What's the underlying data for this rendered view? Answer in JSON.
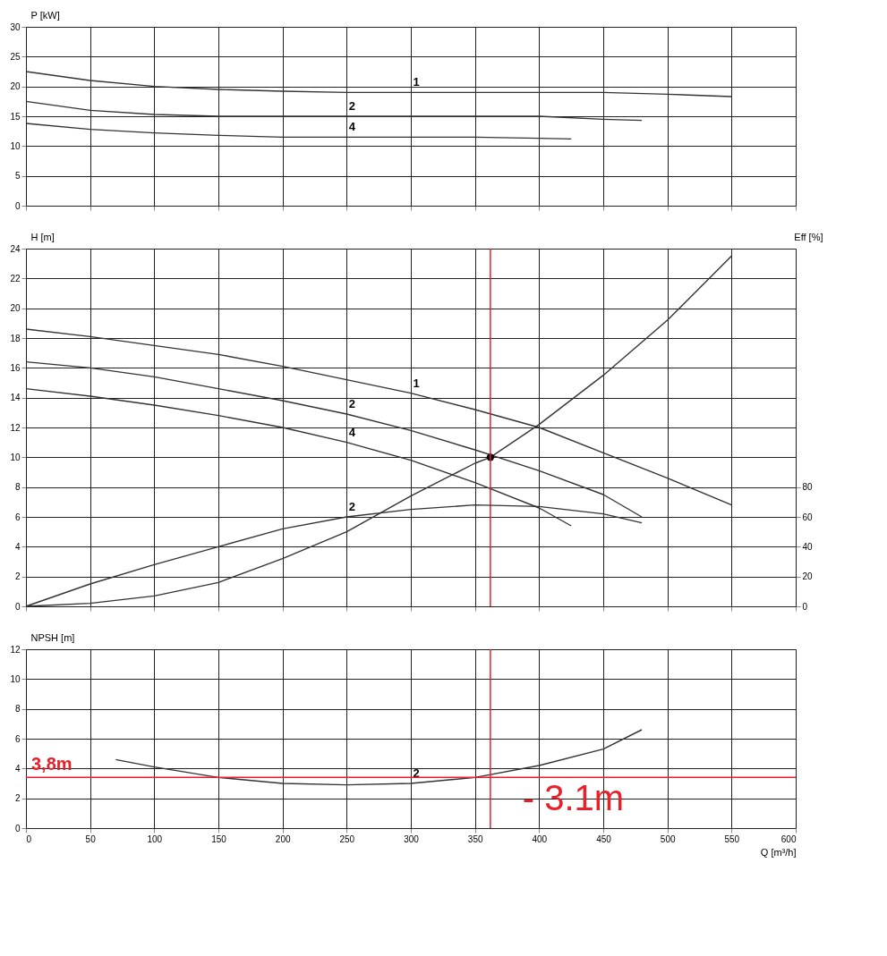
{
  "chart_data": [
    {
      "type": "line",
      "ylabel": "P [kW]",
      "xlim": [
        0,
        600
      ],
      "xticks": [
        0,
        50,
        100,
        150,
        200,
        250,
        300,
        350,
        400,
        450,
        500,
        550,
        600
      ],
      "ylim": [
        0,
        30
      ],
      "yticks": [
        0,
        5,
        10,
        15,
        20,
        25,
        30
      ],
      "grid": true,
      "marker": "none",
      "line_style": "solid",
      "legend": false,
      "tick_labels": "y",
      "series": [
        {
          "name": "1",
          "color": "#333333",
          "x": [
            0,
            50,
            100,
            150,
            200,
            250,
            300,
            350,
            400,
            450,
            500,
            550
          ],
          "values": [
            22.5,
            21,
            20,
            19.5,
            19.2,
            19,
            19,
            19,
            19,
            19,
            18.7,
            18.3
          ]
        },
        {
          "name": "2",
          "color": "#333333",
          "x": [
            0,
            50,
            100,
            150,
            200,
            250,
            300,
            350,
            400,
            450,
            480
          ],
          "values": [
            17.5,
            16,
            15.3,
            15,
            15,
            15,
            15,
            15,
            15,
            14.5,
            14.3
          ]
        },
        {
          "name": "4",
          "color": "#333333",
          "x": [
            0,
            50,
            100,
            150,
            200,
            250,
            300,
            350,
            400,
            425
          ],
          "values": [
            13.8,
            12.8,
            12.2,
            11.8,
            11.5,
            11.5,
            11.5,
            11.5,
            11.3,
            11.2
          ]
        }
      ]
    },
    {
      "type": "line",
      "ylabel": "H [m]",
      "y2label": "Eff [%]",
      "xlim": [
        0,
        600
      ],
      "xticks": [
        0,
        50,
        100,
        150,
        200,
        250,
        300,
        350,
        400,
        450,
        500,
        550,
        600
      ],
      "ylim": [
        0,
        24
      ],
      "yticks": [
        0,
        2,
        4,
        6,
        8,
        10,
        12,
        14,
        16,
        18,
        20,
        22,
        24
      ],
      "y2lim": [
        0,
        240
      ],
      "y2ticks": [
        0,
        20,
        40,
        60,
        80
      ],
      "grid": true,
      "marker": "none",
      "line_style": "solid",
      "legend": false,
      "tick_labels": "y",
      "series": [
        {
          "name": "1",
          "color": "#333333",
          "x": [
            0,
            50,
            100,
            150,
            200,
            250,
            300,
            350,
            400,
            450,
            500,
            550
          ],
          "values": [
            18.6,
            18.1,
            17.5,
            16.9,
            16.1,
            15.2,
            14.3,
            13.2,
            12,
            10.3,
            8.6,
            6.8
          ]
        },
        {
          "name": "2",
          "color": "#333333",
          "x": [
            0,
            50,
            100,
            150,
            200,
            250,
            300,
            350,
            400,
            450,
            480
          ],
          "values": [
            16.4,
            16,
            15.4,
            14.6,
            13.8,
            12.9,
            11.8,
            10.5,
            9.1,
            7.5,
            6
          ]
        },
        {
          "name": "4",
          "color": "#333333",
          "x": [
            0,
            50,
            100,
            150,
            200,
            250,
            300,
            350,
            400,
            425
          ],
          "values": [
            14.6,
            14.1,
            13.5,
            12.8,
            12,
            11,
            9.8,
            8.3,
            6.6,
            5.4
          ]
        },
        {
          "color": "#333333",
          "x": [
            0,
            50,
            100,
            150,
            200,
            250,
            300,
            350,
            362,
            400,
            450,
            500,
            550
          ],
          "values": [
            0,
            0.2,
            0.7,
            1.6,
            3.2,
            5,
            7.4,
            9.6,
            10,
            12.2,
            15.5,
            19.2,
            23.5
          ]
        },
        {
          "name": "2",
          "color": "#333333",
          "axis": "y2",
          "x": [
            0,
            50,
            100,
            150,
            200,
            250,
            300,
            350,
            400,
            450,
            480
          ],
          "values": [
            0,
            15,
            28,
            40,
            52,
            60,
            65,
            68,
            67,
            62,
            56
          ]
        },
        {
          "type": "scatter",
          "color": "#000000",
          "marker": "circle",
          "x": [
            362
          ],
          "values": [
            10
          ]
        }
      ],
      "ref_lines": [
        {
          "axis": "x",
          "value": 362,
          "label": null,
          "color": "#e8202a"
        }
      ]
    },
    {
      "type": "line",
      "ylabel": "NPSH [m]",
      "xlabel": "Q [m³/h]",
      "xlim": [
        0,
        600
      ],
      "xticks": [
        0,
        50,
        100,
        150,
        200,
        250,
        300,
        350,
        400,
        450,
        500,
        550,
        600
      ],
      "ylim": [
        0,
        12
      ],
      "yticks": [
        0,
        2,
        4,
        6,
        8,
        10,
        12
      ],
      "grid": true,
      "marker": "none",
      "line_style": "solid",
      "legend": false,
      "series": [
        {
          "name": "2",
          "color": "#333333",
          "x": [
            70,
            100,
            150,
            200,
            250,
            300,
            350,
            400,
            450,
            480
          ],
          "values": [
            4.6,
            4.1,
            3.4,
            3,
            2.9,
            3,
            3.4,
            4.2,
            5.3,
            6.6
          ]
        }
      ],
      "ref_lines": [
        {
          "axis": "y",
          "value": 3.4,
          "label": "3,8m",
          "color": "#e8202a"
        },
        {
          "axis": "x",
          "value": 362,
          "label": null,
          "color": "#e8202a"
        }
      ],
      "annotations": [
        "- 3.1m"
      ]
    }
  ]
}
